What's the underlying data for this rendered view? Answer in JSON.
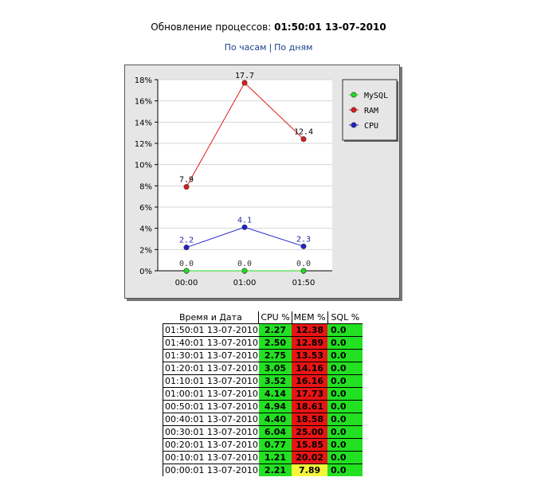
{
  "header": {
    "label": "Обновление процессов:",
    "value": "01:50:01 13-07-2010"
  },
  "nav": {
    "hours_label": "По часам",
    "separator": "|",
    "days_label": "По дням"
  },
  "chart_data": {
    "type": "line",
    "categories": [
      "00:00",
      "01:00",
      "01:50"
    ],
    "ylim": [
      0,
      18
    ],
    "yticks": [
      "0%",
      "2%",
      "4%",
      "6%",
      "8%",
      "10%",
      "12%",
      "14%",
      "16%",
      "18%"
    ],
    "series": [
      {
        "name": "MySQL",
        "color": "#22dd22",
        "values": [
          0.0,
          0.0,
          0.0
        ],
        "labels": [
          "0.0",
          "0.0",
          "0.0"
        ]
      },
      {
        "name": "RAM",
        "color": "#dd1a1a",
        "values": [
          7.9,
          17.7,
          12.4
        ],
        "labels": [
          "7.9",
          "17.7",
          "12.4"
        ]
      },
      {
        "name": "CPU",
        "color": "#2222cc",
        "values": [
          2.2,
          4.1,
          2.3
        ],
        "labels": [
          "2.2",
          "4.1",
          "2.3"
        ]
      }
    ],
    "legend_position": "top-right",
    "grid": true
  },
  "table": {
    "headers": [
      "Время и Дата",
      "CPU %",
      "MEM %",
      "SQL %"
    ],
    "rows": [
      {
        "datetime": "01:50:01 13-07-2010",
        "cpu": "2.27",
        "mem": "12.38",
        "sql": "0.0",
        "mem_color": "red"
      },
      {
        "datetime": "01:40:01 13-07-2010",
        "cpu": "2.50",
        "mem": "12.89",
        "sql": "0.0",
        "mem_color": "red"
      },
      {
        "datetime": "01:30:01 13-07-2010",
        "cpu": "2.75",
        "mem": "13.53",
        "sql": "0.0",
        "mem_color": "red"
      },
      {
        "datetime": "01:20:01 13-07-2010",
        "cpu": "3.05",
        "mem": "14.16",
        "sql": "0.0",
        "mem_color": "red"
      },
      {
        "datetime": "01:10:01 13-07-2010",
        "cpu": "3.52",
        "mem": "16.16",
        "sql": "0.0",
        "mem_color": "red"
      },
      {
        "datetime": "01:00:01 13-07-2010",
        "cpu": "4.14",
        "mem": "17.73",
        "sql": "0.0",
        "mem_color": "red"
      },
      {
        "datetime": "00:50:01 13-07-2010",
        "cpu": "4.94",
        "mem": "18.61",
        "sql": "0.0",
        "mem_color": "red"
      },
      {
        "datetime": "00:40:01 13-07-2010",
        "cpu": "4.40",
        "mem": "18.58",
        "sql": "0.0",
        "mem_color": "red"
      },
      {
        "datetime": "00:30:01 13-07-2010",
        "cpu": "6.04",
        "mem": "25.00",
        "sql": "0.0",
        "mem_color": "red"
      },
      {
        "datetime": "00:20:01 13-07-2010",
        "cpu": "0.77",
        "mem": "15.85",
        "sql": "0.0",
        "mem_color": "red"
      },
      {
        "datetime": "00:10:01 13-07-2010",
        "cpu": "1.21",
        "mem": "20.02",
        "sql": "0.0",
        "mem_color": "red"
      },
      {
        "datetime": "00:00:01 13-07-2010",
        "cpu": "2.21",
        "mem": "7.89",
        "sql": "0.0",
        "mem_color": "yellow"
      }
    ]
  }
}
